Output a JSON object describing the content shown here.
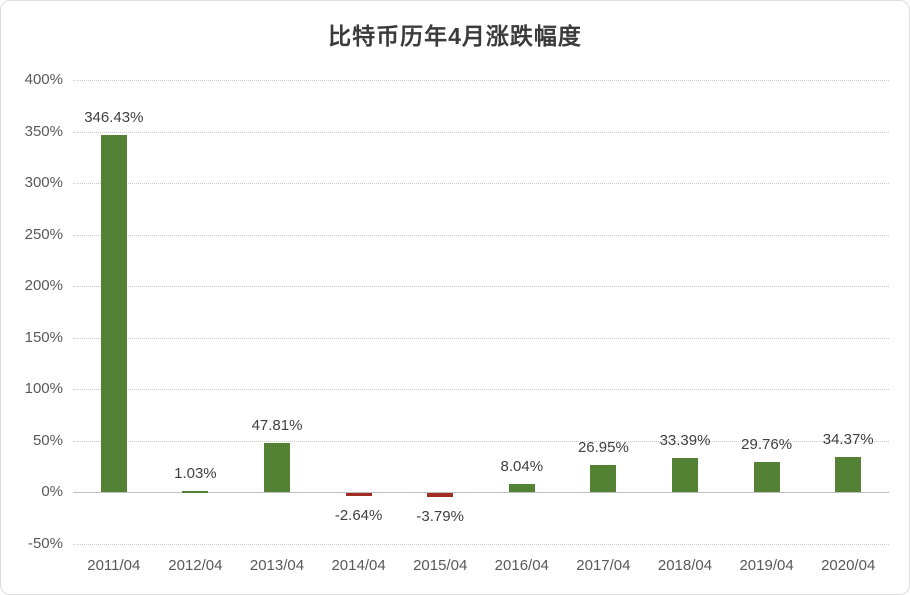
{
  "chart_data": {
    "type": "bar",
    "title": "比特币历年4月涨跌幅度",
    "categories": [
      "2011/04",
      "2012/04",
      "2013/04",
      "2014/04",
      "2015/04",
      "2016/04",
      "2017/04",
      "2018/04",
      "2019/04",
      "2020/04"
    ],
    "values": [
      346.43,
      1.03,
      47.81,
      -2.64,
      -3.79,
      8.04,
      26.95,
      33.39,
      29.76,
      34.37
    ],
    "value_labels": [
      "346.43%",
      "1.03%",
      "47.81%",
      "-2.64%",
      "-3.79%",
      "8.04%",
      "26.95%",
      "33.39%",
      "29.76%",
      "34.37%"
    ],
    "xlabel": "",
    "ylabel": "",
    "ylim": [
      -50,
      400
    ],
    "ytick_step": 50,
    "ytick_labels_top_down": [
      "400%",
      "350%",
      "300%",
      "250%",
      "200%",
      "150%",
      "100%",
      "50%",
      "0%",
      "-50%"
    ],
    "grid": true,
    "legend_position": "none",
    "colors": {
      "positive_bar": "#548235",
      "negative_bar": "#a22b23",
      "gridline": "#c9c9c9",
      "axis_line": "#bfbfbf",
      "tick_text": "#595959",
      "label_text": "#404040",
      "title_text": "#3b3b3b"
    }
  }
}
